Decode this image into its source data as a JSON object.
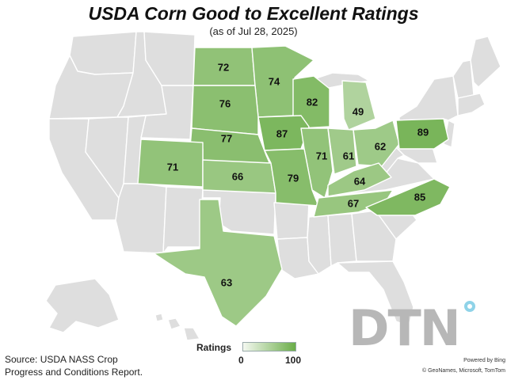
{
  "title": "USDA Corn Good to Excellent Ratings",
  "subtitle": "(as of Jul 28, 2025)",
  "legend": {
    "title": "Ratings",
    "min": "0",
    "max": "100",
    "min_color": "#f4f8f0",
    "max_color": "#6aad48"
  },
  "source_line1": "Source: USDA NASS Crop",
  "source_line2": "Progress and Conditions Report.",
  "logo_text": "DTN",
  "powered_by": "Powered by Bing",
  "attribution": "© GeoNames, Microsoft, TomTom",
  "colors": {
    "no_data": "#dedede",
    "border": "#ffffff"
  },
  "ratings": [
    {
      "state": "North Dakota",
      "value": 72
    },
    {
      "state": "Minnesota",
      "value": 74
    },
    {
      "state": "South Dakota",
      "value": 76
    },
    {
      "state": "Wisconsin",
      "value": 82
    },
    {
      "state": "Michigan",
      "value": 49
    },
    {
      "state": "Nebraska",
      "value": 77
    },
    {
      "state": "Iowa",
      "value": 87
    },
    {
      "state": "Illinois",
      "value": 71
    },
    {
      "state": "Indiana",
      "value": 61
    },
    {
      "state": "Ohio",
      "value": 62
    },
    {
      "state": "Pennsylvania",
      "value": 89
    },
    {
      "state": "Colorado",
      "value": 71
    },
    {
      "state": "Kansas",
      "value": 66
    },
    {
      "state": "Missouri",
      "value": 79
    },
    {
      "state": "Kentucky",
      "value": 64
    },
    {
      "state": "Tennessee",
      "value": 67
    },
    {
      "state": "North Carolina",
      "value": 85
    },
    {
      "state": "Texas",
      "value": 63
    }
  ]
}
